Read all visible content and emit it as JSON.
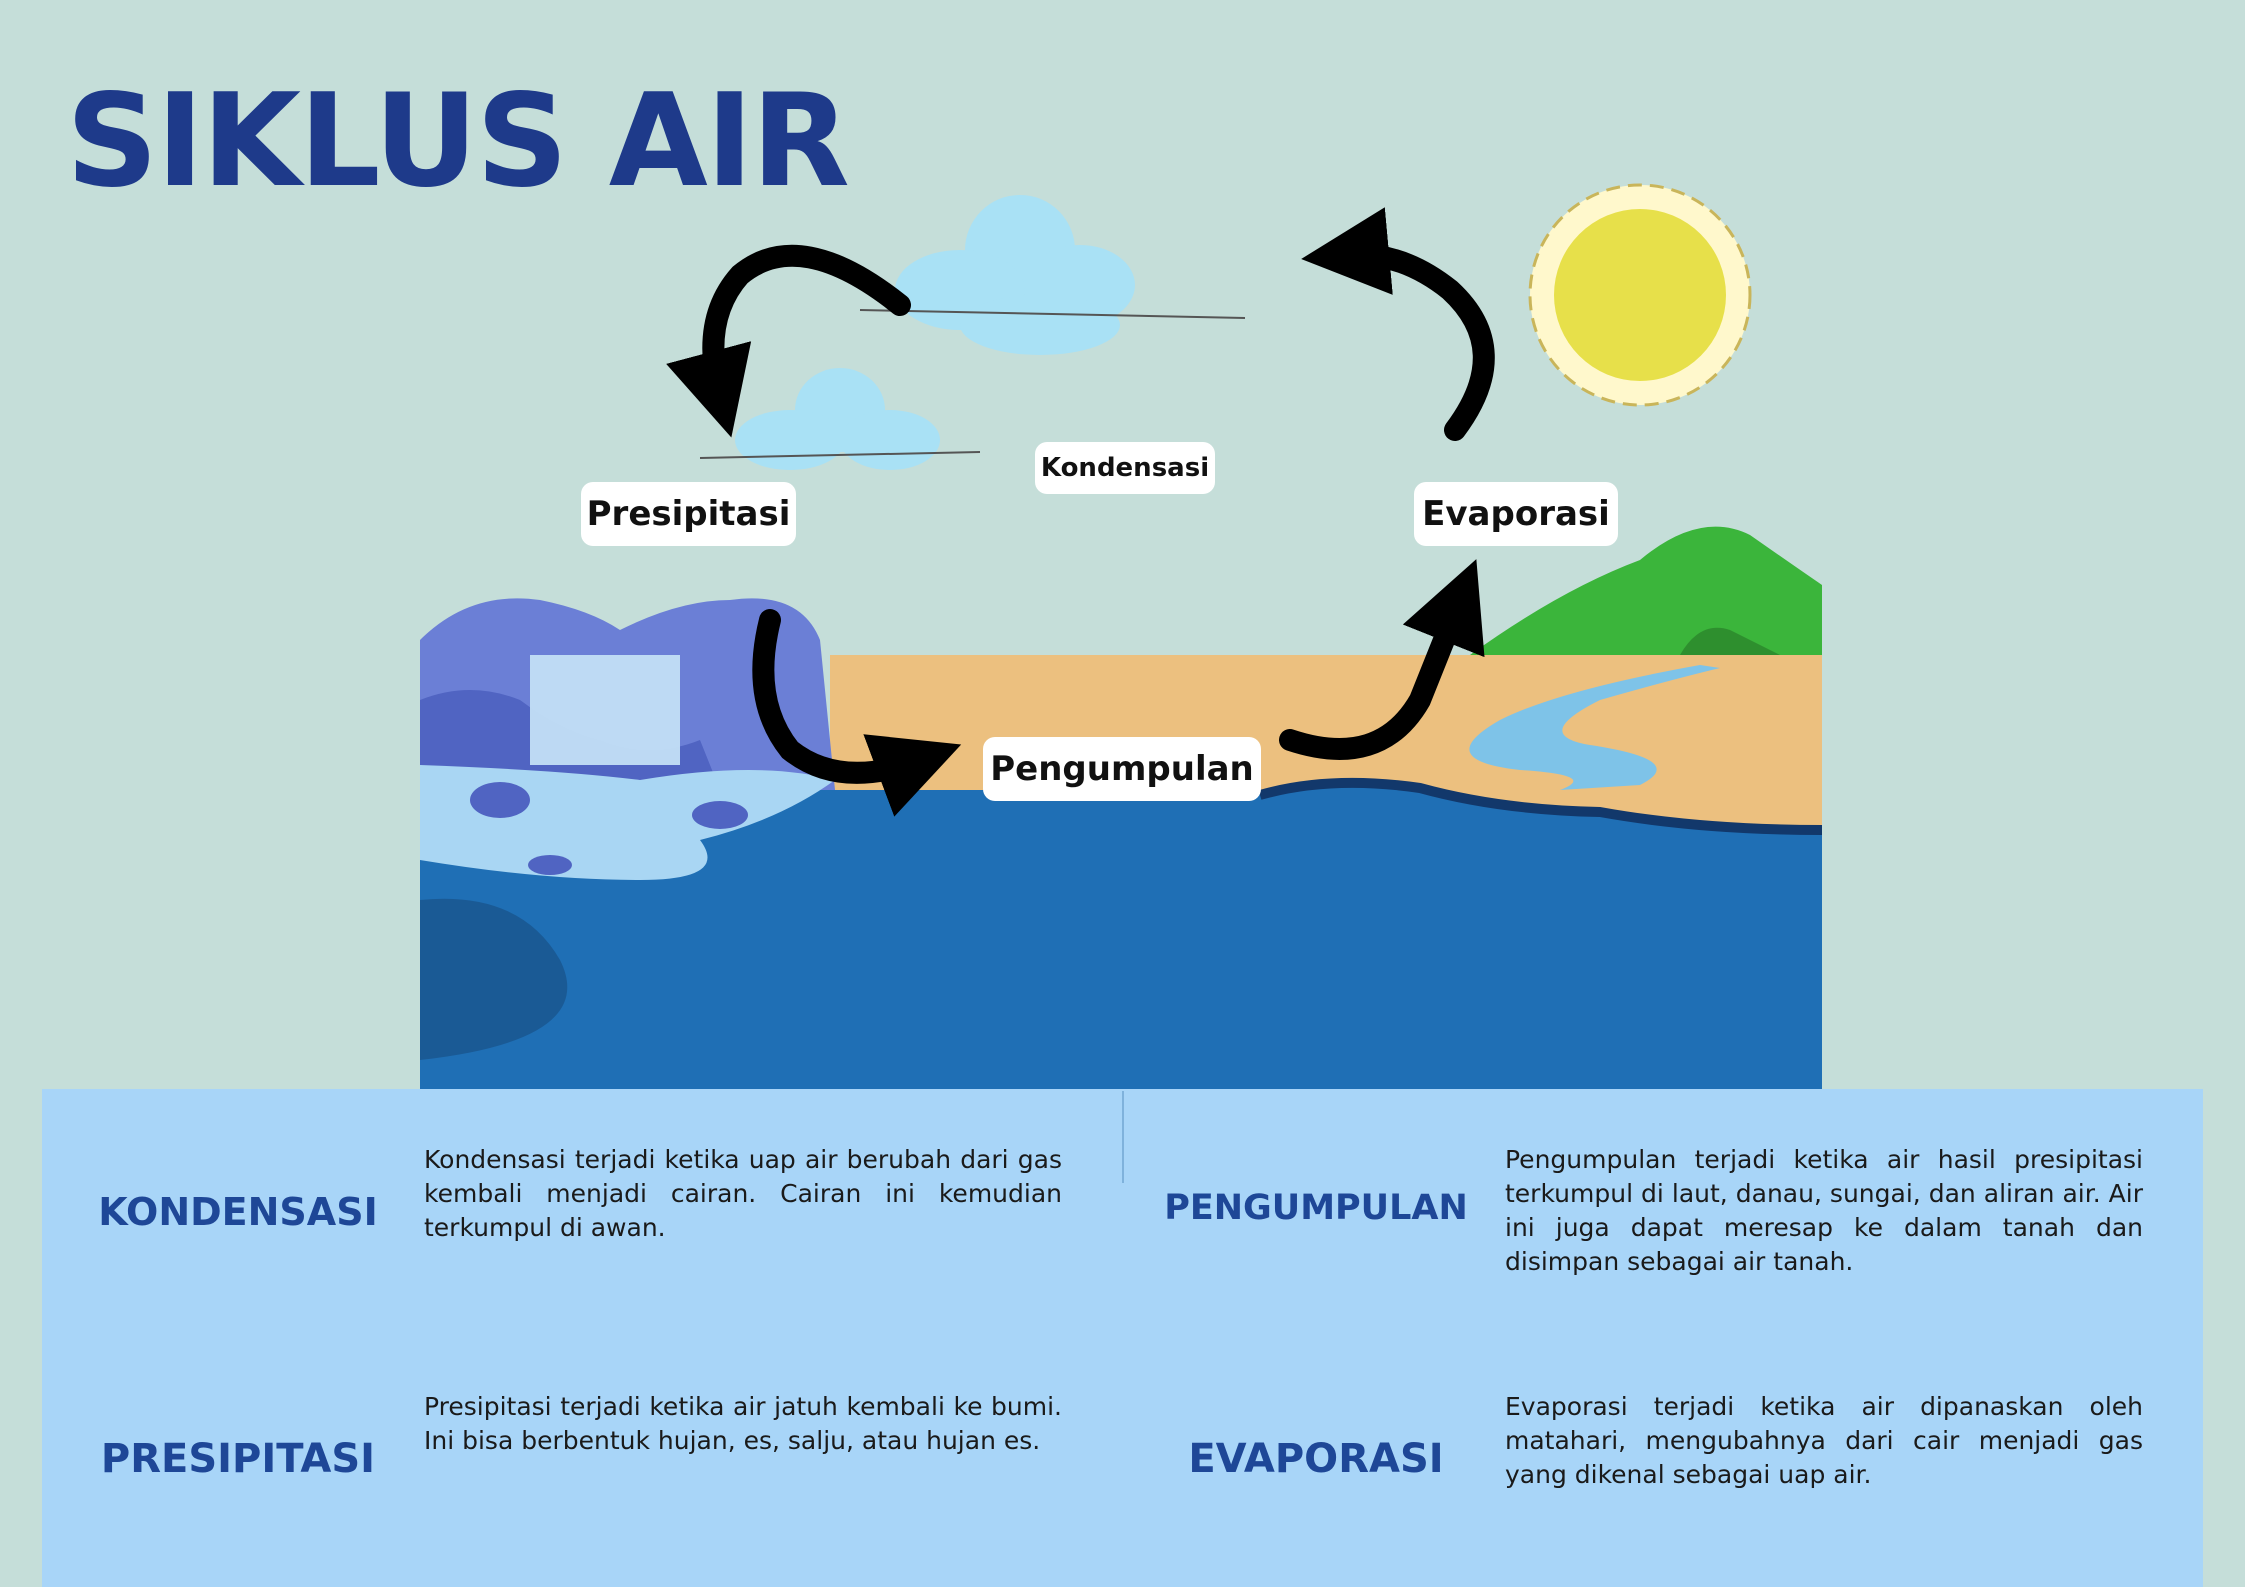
{
  "title": "SIKLUS AIR",
  "labels": {
    "presipitasi": "Presipitasi",
    "kondensasi": "Kondensasi",
    "evaporasi": "Evaporasi",
    "pengumpulan": "Pengumpulan"
  },
  "cards": [
    {
      "heading": "KONDENSASI",
      "text": "Kondensasi terjadi ketika uap air berubah dari gas kembali menjadi cairan. Cairan ini kemudian terkumpul di awan."
    },
    {
      "heading": "PENGUMPULAN",
      "text": "Pengumpulan terjadi ketika air hasil presipitasi terkumpul di laut, danau, sungai, dan aliran air. Air ini juga dapat meresap ke dalam tanah dan disimpan sebagai air tanah."
    },
    {
      "heading": "PRESIPITASI",
      "text": "Presipitasi terjadi ketika air jatuh kembali ke bumi. Ini bisa berbentuk hujan, es, salju, atau hujan es."
    },
    {
      "heading": "EVAPORASI",
      "text": "Evaporasi terjadi ketika air dipanaskan oleh matahari, mengubahnya dari cair menjadi gas yang dikenal sebagai uap air."
    }
  ],
  "colors": {
    "background": "#c5ded9",
    "title": "#1e3a8a",
    "panel": "#a8d5f8",
    "heading": "#1e4797",
    "sea": "#1f6fb5",
    "sand": "#ecc07f",
    "hill": "#3bb53b",
    "sun": "#e7e04a",
    "cloud": "#a9e1f5",
    "rock": "#6b7fd6"
  }
}
